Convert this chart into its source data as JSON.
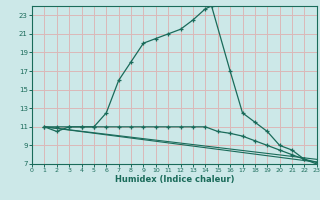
{
  "title": "",
  "xlabel": "Humidex (Indice chaleur)",
  "bg_color": "#cce8e8",
  "line_color": "#1a6b5a",
  "grid_color": "#dbb8b8",
  "xlim": [
    0,
    23
  ],
  "ylim": [
    7,
    24
  ],
  "xticks": [
    0,
    1,
    2,
    3,
    4,
    5,
    6,
    7,
    8,
    9,
    10,
    11,
    12,
    13,
    14,
    15,
    16,
    17,
    18,
    19,
    20,
    21,
    22,
    23
  ],
  "yticks": [
    7,
    9,
    11,
    13,
    15,
    17,
    19,
    21,
    23
  ],
  "line1_x": [
    1,
    2,
    3,
    4,
    5,
    6,
    7,
    8,
    9,
    10,
    11,
    12,
    13,
    14,
    14.5,
    16,
    17,
    18,
    19,
    20,
    21,
    22,
    23
  ],
  "line1_y": [
    11,
    10.5,
    11,
    11,
    11,
    12.5,
    16,
    18,
    20,
    20.5,
    21,
    21.5,
    22.5,
    23.7,
    24,
    17,
    12.5,
    11.5,
    10.5,
    9,
    8.5,
    7.5,
    7
  ],
  "line2_x": [
    1,
    2,
    3,
    4,
    5,
    6,
    7,
    8,
    9,
    10,
    11,
    12,
    13,
    14,
    15,
    16,
    17,
    18,
    19,
    20,
    21,
    22,
    23
  ],
  "line2_y": [
    11,
    11,
    11,
    11,
    11,
    11,
    11,
    11,
    11,
    11,
    11,
    11,
    11,
    11,
    10.5,
    10.3,
    10.0,
    9.5,
    9.0,
    8.5,
    8.0,
    7.5,
    7.2
  ],
  "line3_x": [
    1,
    23
  ],
  "line3_y": [
    11,
    7.2
  ],
  "line4_x": [
    1,
    23
  ],
  "line4_y": [
    11,
    7.5
  ]
}
